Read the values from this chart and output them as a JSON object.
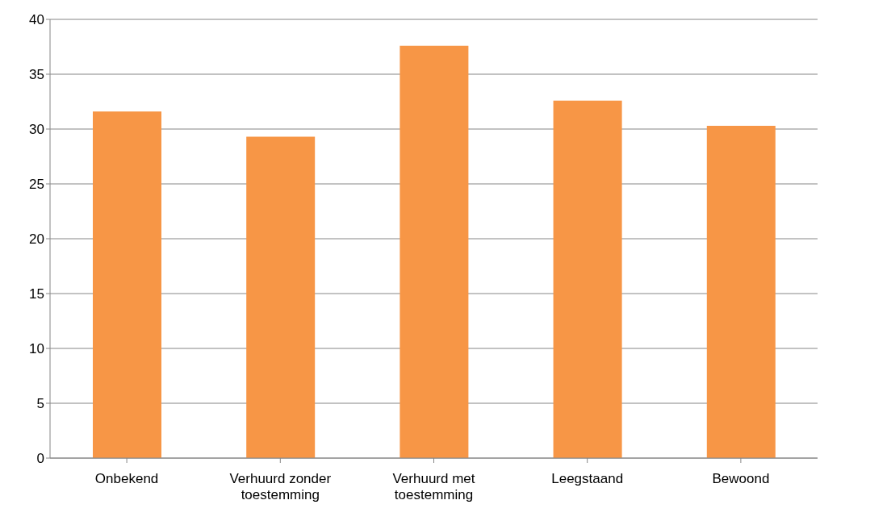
{
  "chart_data": {
    "type": "bar",
    "categories": [
      "Onbekend",
      "Verhuurd zonder toestemming",
      "Verhuurd met toestemming",
      "Leegstaand",
      "Bewoond"
    ],
    "values": [
      31.6,
      29.3,
      37.6,
      32.6,
      30.3
    ],
    "color": "#f79646",
    "ylim": [
      0,
      40
    ],
    "yticks": [
      0,
      5,
      10,
      15,
      20,
      25,
      30,
      35,
      40
    ],
    "grid": "y"
  }
}
